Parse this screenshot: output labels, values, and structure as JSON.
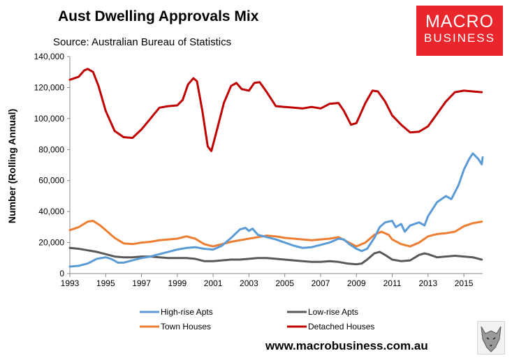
{
  "header": {
    "title": "Aust Dwelling Approvals Mix",
    "subtitle": "Source: Australian Bureau of Statistics"
  },
  "logo": {
    "line1": "MACRO",
    "line2": "BUSINESS"
  },
  "footer": {
    "url": "www.macrobusiness.com.au"
  },
  "colors": {
    "high_rise": "#5b9bd5",
    "low_rise": "#595959",
    "town_houses": "#ed7d31",
    "detached": "#c00000",
    "brand_red": "#e8262b"
  },
  "chart_data": {
    "type": "line",
    "title": "Aust Dwelling Approvals Mix",
    "ylabel": "Number (Rolling Annual)",
    "xlabel": "",
    "xlim": [
      1993.0,
      2016.05
    ],
    "ylim": [
      0,
      140000
    ],
    "y_ticks": [
      0,
      20000,
      40000,
      60000,
      80000,
      100000,
      120000,
      140000
    ],
    "y_tick_labels": [
      "0",
      "20,000",
      "40,000",
      "60,000",
      "80,000",
      "100,000",
      "120,000",
      "140,000"
    ],
    "x_ticks": [
      1993,
      1995,
      1997,
      1999,
      2001,
      2003,
      2005,
      2007,
      2009,
      2011,
      2013,
      2015
    ],
    "x_tick_labels": [
      "1993",
      "1995",
      "1997",
      "1999",
      "2001",
      "2003",
      "2005",
      "2007",
      "2009",
      "2011",
      "2013",
      "2015"
    ],
    "grid": false,
    "legend_position": "bottom",
    "series": [
      {
        "name": "High-rise Apts",
        "color_key": "high_rise",
        "points": [
          [
            1993.0,
            4500
          ],
          [
            1993.5,
            5000
          ],
          [
            1994.0,
            6500
          ],
          [
            1994.5,
            9500
          ],
          [
            1995.0,
            10500
          ],
          [
            1995.3,
            9500
          ],
          [
            1995.7,
            7000
          ],
          [
            1996.0,
            7000
          ],
          [
            1996.5,
            8500
          ],
          [
            1997.0,
            10000
          ],
          [
            1997.5,
            11000
          ],
          [
            1998.0,
            12500
          ],
          [
            1998.5,
            14000
          ],
          [
            1999.0,
            15500
          ],
          [
            1999.5,
            16500
          ],
          [
            2000.0,
            17000
          ],
          [
            2000.5,
            16000
          ],
          [
            2001.0,
            15500
          ],
          [
            2001.5,
            18000
          ],
          [
            2002.0,
            23000
          ],
          [
            2002.5,
            28500
          ],
          [
            2002.8,
            29500
          ],
          [
            2003.0,
            27500
          ],
          [
            2003.2,
            29000
          ],
          [
            2003.5,
            25000
          ],
          [
            2004.0,
            23500
          ],
          [
            2004.5,
            22000
          ],
          [
            2005.0,
            20000
          ],
          [
            2005.5,
            18000
          ],
          [
            2006.0,
            16500
          ],
          [
            2006.5,
            17000
          ],
          [
            2007.0,
            18500
          ],
          [
            2007.5,
            20000
          ],
          [
            2008.0,
            22500
          ],
          [
            2008.3,
            22000
          ],
          [
            2008.6,
            19000
          ],
          [
            2009.0,
            16000
          ],
          [
            2009.3,
            14500
          ],
          [
            2009.6,
            16000
          ],
          [
            2010.0,
            23000
          ],
          [
            2010.3,
            30000
          ],
          [
            2010.6,
            33000
          ],
          [
            2011.0,
            34000
          ],
          [
            2011.2,
            30000
          ],
          [
            2011.5,
            32000
          ],
          [
            2011.7,
            27000
          ],
          [
            2012.0,
            31000
          ],
          [
            2012.5,
            33000
          ],
          [
            2012.8,
            31000
          ],
          [
            2013.0,
            37000
          ],
          [
            2013.5,
            46000
          ],
          [
            2014.0,
            50000
          ],
          [
            2014.3,
            48000
          ],
          [
            2014.7,
            57000
          ],
          [
            2015.0,
            67000
          ],
          [
            2015.3,
            74000
          ],
          [
            2015.5,
            77500
          ],
          [
            2015.8,
            74000
          ],
          [
            2016.0,
            70500
          ],
          [
            2016.05,
            75000
          ]
        ]
      },
      {
        "name": "Low-rise Apts",
        "color_key": "low_rise",
        "points": [
          [
            1993.0,
            16500
          ],
          [
            1993.5,
            16000
          ],
          [
            1994.0,
            15000
          ],
          [
            1994.5,
            14000
          ],
          [
            1995.0,
            12500
          ],
          [
            1995.5,
            11000
          ],
          [
            1996.0,
            10500
          ],
          [
            1996.5,
            10500
          ],
          [
            1997.0,
            11000
          ],
          [
            1997.5,
            11000
          ],
          [
            1998.0,
            10500
          ],
          [
            1998.5,
            10000
          ],
          [
            1999.0,
            10000
          ],
          [
            1999.5,
            10000
          ],
          [
            2000.0,
            9500
          ],
          [
            2000.5,
            8000
          ],
          [
            2001.0,
            8000
          ],
          [
            2001.5,
            8500
          ],
          [
            2002.0,
            9000
          ],
          [
            2002.5,
            9000
          ],
          [
            2003.0,
            9500
          ],
          [
            2003.5,
            10000
          ],
          [
            2004.0,
            10000
          ],
          [
            2004.5,
            9500
          ],
          [
            2005.0,
            9000
          ],
          [
            2005.5,
            8500
          ],
          [
            2006.0,
            8000
          ],
          [
            2006.5,
            7500
          ],
          [
            2007.0,
            7500
          ],
          [
            2007.5,
            8000
          ],
          [
            2008.0,
            7500
          ],
          [
            2008.5,
            6500
          ],
          [
            2009.0,
            6000
          ],
          [
            2009.3,
            6500
          ],
          [
            2009.6,
            9000
          ],
          [
            2010.0,
            13000
          ],
          [
            2010.3,
            14000
          ],
          [
            2010.6,
            12000
          ],
          [
            2011.0,
            9000
          ],
          [
            2011.5,
            8000
          ],
          [
            2012.0,
            8500
          ],
          [
            2012.5,
            12000
          ],
          [
            2012.8,
            13000
          ],
          [
            2013.0,
            12500
          ],
          [
            2013.5,
            10500
          ],
          [
            2014.0,
            11000
          ],
          [
            2014.5,
            11500
          ],
          [
            2015.0,
            11000
          ],
          [
            2015.5,
            10500
          ],
          [
            2016.0,
            9000
          ]
        ]
      },
      {
        "name": "Town Houses",
        "color_key": "town_houses",
        "points": [
          [
            1993.0,
            28000
          ],
          [
            1993.5,
            30000
          ],
          [
            1994.0,
            33500
          ],
          [
            1994.3,
            34000
          ],
          [
            1994.7,
            31000
          ],
          [
            1995.0,
            28000
          ],
          [
            1995.5,
            23000
          ],
          [
            1996.0,
            19500
          ],
          [
            1996.5,
            19000
          ],
          [
            1997.0,
            20000
          ],
          [
            1997.5,
            20500
          ],
          [
            1998.0,
            21500
          ],
          [
            1998.5,
            22000
          ],
          [
            1999.0,
            22500
          ],
          [
            1999.5,
            24000
          ],
          [
            2000.0,
            22500
          ],
          [
            2000.5,
            19000
          ],
          [
            2001.0,
            17500
          ],
          [
            2001.5,
            19000
          ],
          [
            2002.0,
            20500
          ],
          [
            2002.5,
            21500
          ],
          [
            2003.0,
            22500
          ],
          [
            2003.5,
            23500
          ],
          [
            2004.0,
            24500
          ],
          [
            2004.5,
            24000
          ],
          [
            2005.0,
            23000
          ],
          [
            2005.5,
            22500
          ],
          [
            2006.0,
            22000
          ],
          [
            2006.5,
            21500
          ],
          [
            2007.0,
            22000
          ],
          [
            2007.5,
            22500
          ],
          [
            2008.0,
            23500
          ],
          [
            2008.5,
            20500
          ],
          [
            2009.0,
            17500
          ],
          [
            2009.5,
            20000
          ],
          [
            2010.0,
            25000
          ],
          [
            2010.4,
            27000
          ],
          [
            2010.8,
            25000
          ],
          [
            2011.0,
            22000
          ],
          [
            2011.5,
            19000
          ],
          [
            2012.0,
            17500
          ],
          [
            2012.5,
            20000
          ],
          [
            2013.0,
            24000
          ],
          [
            2013.5,
            25500
          ],
          [
            2014.0,
            26000
          ],
          [
            2014.5,
            27000
          ],
          [
            2015.0,
            30500
          ],
          [
            2015.5,
            32500
          ],
          [
            2016.0,
            33500
          ]
        ]
      },
      {
        "name": "Detached Houses",
        "color_key": "detached",
        "points": [
          [
            1993.0,
            125000
          ],
          [
            1993.5,
            127000
          ],
          [
            1993.8,
            131000
          ],
          [
            1994.0,
            132000
          ],
          [
            1994.3,
            130000
          ],
          [
            1994.6,
            121000
          ],
          [
            1995.0,
            105000
          ],
          [
            1995.5,
            92000
          ],
          [
            1996.0,
            88000
          ],
          [
            1996.5,
            87500
          ],
          [
            1997.0,
            93000
          ],
          [
            1997.5,
            100000
          ],
          [
            1998.0,
            107000
          ],
          [
            1998.5,
            108000
          ],
          [
            1999.0,
            108500
          ],
          [
            1999.3,
            112000
          ],
          [
            1999.6,
            122000
          ],
          [
            1999.9,
            126000
          ],
          [
            2000.1,
            124000
          ],
          [
            2000.4,
            105000
          ],
          [
            2000.7,
            82000
          ],
          [
            2000.9,
            79000
          ],
          [
            2001.2,
            92000
          ],
          [
            2001.6,
            110000
          ],
          [
            2002.0,
            121000
          ],
          [
            2002.3,
            123000
          ],
          [
            2002.6,
            119000
          ],
          [
            2003.0,
            118000
          ],
          [
            2003.3,
            123000
          ],
          [
            2003.6,
            123500
          ],
          [
            2004.0,
            117000
          ],
          [
            2004.5,
            108000
          ],
          [
            2005.0,
            107500
          ],
          [
            2005.5,
            107000
          ],
          [
            2006.0,
            106500
          ],
          [
            2006.5,
            107500
          ],
          [
            2007.0,
            106500
          ],
          [
            2007.5,
            109500
          ],
          [
            2008.0,
            110000
          ],
          [
            2008.3,
            105000
          ],
          [
            2008.7,
            96000
          ],
          [
            2009.0,
            97000
          ],
          [
            2009.5,
            110000
          ],
          [
            2009.9,
            118000
          ],
          [
            2010.2,
            117500
          ],
          [
            2010.6,
            111000
          ],
          [
            2011.0,
            102000
          ],
          [
            2011.5,
            96000
          ],
          [
            2012.0,
            91000
          ],
          [
            2012.5,
            91500
          ],
          [
            2013.0,
            95000
          ],
          [
            2013.5,
            103000
          ],
          [
            2014.0,
            111000
          ],
          [
            2014.5,
            117000
          ],
          [
            2015.0,
            118000
          ],
          [
            2015.5,
            117500
          ],
          [
            2016.0,
            117000
          ]
        ]
      }
    ]
  }
}
